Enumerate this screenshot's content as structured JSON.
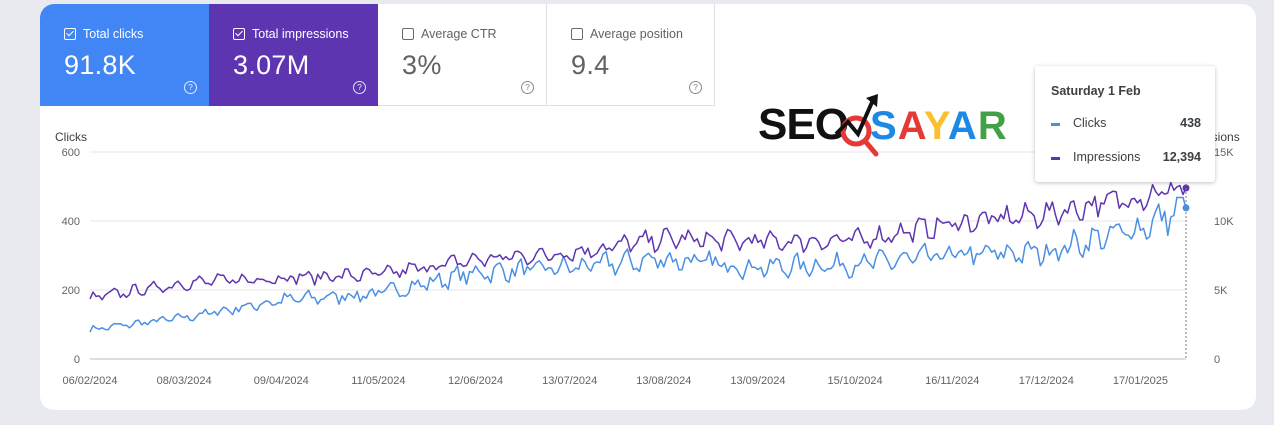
{
  "metrics": [
    {
      "label": "Total clicks",
      "value": "91.8K",
      "checked": true
    },
    {
      "label": "Total impressions",
      "value": "3.07M",
      "checked": true
    },
    {
      "label": "Average CTR",
      "value": "3%",
      "checked": false
    },
    {
      "label": "Average position",
      "value": "9.4",
      "checked": false
    }
  ],
  "help_glyph": "?",
  "watermark": {
    "seo": "SEO",
    "sayar": "SAYAR"
  },
  "tooltip": {
    "date": "Saturday 1 Feb",
    "rows": [
      {
        "label": "Clicks",
        "value": "438",
        "color": "#4a90e2"
      },
      {
        "label": "Impressions",
        "value": "12,394",
        "color": "#5e35b1"
      }
    ]
  },
  "chart_data": {
    "type": "line",
    "left_axis_title": "Clicks",
    "right_axis_title": "Impressions",
    "left_ylim": [
      0,
      600
    ],
    "right_ylim": [
      0,
      15000
    ],
    "left_ticks": [
      "600",
      "400",
      "200",
      "0"
    ],
    "right_ticks": [
      "15K",
      "10K",
      "5K",
      "0"
    ],
    "x_tick_labels": [
      "06/02/2024",
      "08/03/2024",
      "09/04/2024",
      "11/05/2024",
      "12/06/2024",
      "13/07/2024",
      "13/08/2024",
      "13/09/2024",
      "15/10/2024",
      "16/11/2024",
      "17/12/2024",
      "17/01/2025"
    ],
    "grid": true,
    "series": [
      {
        "name": "Clicks",
        "color": "#4a90e2",
        "axis": "left",
        "keypoints_x": [
          "06/02/2024",
          "08/03/2024",
          "09/04/2024",
          "11/05/2024",
          "12/06/2024",
          "13/07/2024",
          "13/08/2024",
          "13/09/2024",
          "15/10/2024",
          "16/11/2024",
          "17/12/2024",
          "17/01/2025",
          "01/02/2025"
        ],
        "keypoints_y": [
          85,
          120,
          170,
          190,
          250,
          265,
          290,
          265,
          275,
          300,
          310,
          380,
          438
        ]
      },
      {
        "name": "Impressions",
        "color": "#5e35b1",
        "axis": "right",
        "keypoints_x": [
          "06/02/2024",
          "08/03/2024",
          "09/04/2024",
          "11/05/2024",
          "12/06/2024",
          "13/07/2024",
          "13/08/2024",
          "13/09/2024",
          "15/10/2024",
          "16/11/2024",
          "17/12/2024",
          "17/01/2025",
          "01/02/2025"
        ],
        "keypoints_y": [
          4400,
          5500,
          5900,
          6100,
          7200,
          7700,
          8700,
          8500,
          8600,
          9800,
          10500,
          11800,
          12394
        ]
      }
    ],
    "highlight_x": "01/02/2025"
  }
}
